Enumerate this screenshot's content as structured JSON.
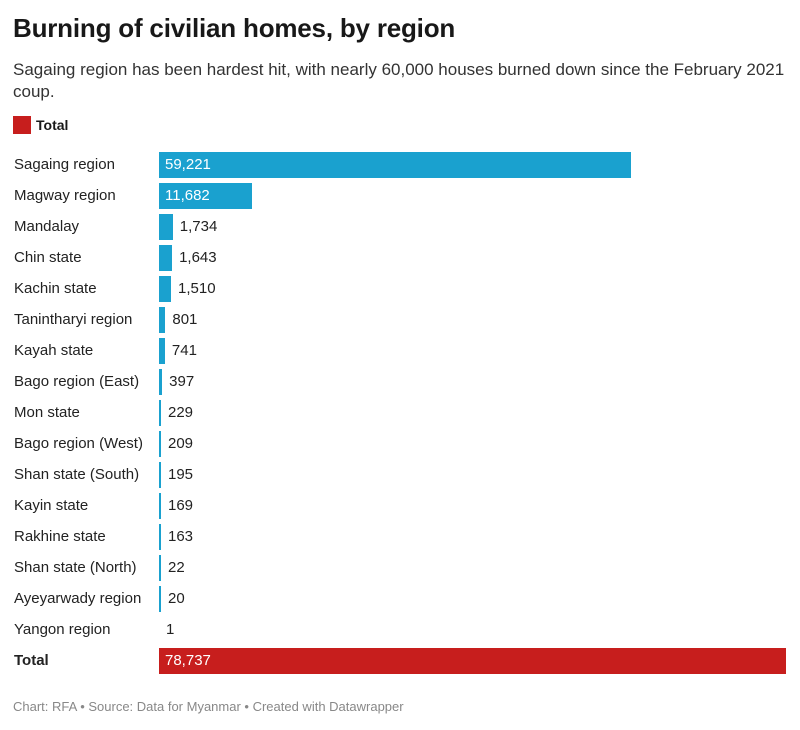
{
  "title": "Burning of civilian homes, by region",
  "subtitle": "Sagaing region has been hardest hit, with nearly 60,000 houses burned down since the February 2021 coup.",
  "footer": "Chart: RFA • Source: Data for Myanmar • Created with Datawrapper",
  "colors": {
    "bar": "#1aa1cf",
    "total": "#c71e1d"
  },
  "chart_data": {
    "type": "bar",
    "orientation": "horizontal",
    "title": "Burning of civilian homes, by region",
    "legend": {
      "entries": [
        "Total"
      ],
      "placement": "top-left"
    },
    "categories": [
      "Sagaing region",
      "Magway region",
      "Mandalay",
      "Chin state",
      "Kachin state",
      "Tanintharyi region",
      "Kayah state",
      "Bago region (East)",
      "Mon state",
      "Bago region (West)",
      "Shan state (South)",
      "Kayin state",
      "Rakhine state",
      "Shan state (North)",
      "Ayeyarwady region",
      "Yangon region",
      "Total"
    ],
    "values": [
      59221,
      11682,
      1734,
      1643,
      1510,
      801,
      741,
      397,
      229,
      209,
      195,
      169,
      163,
      22,
      20,
      1,
      78737
    ],
    "value_labels": [
      "59,221",
      "11,682",
      "1,734",
      "1,643",
      "1,510",
      "801",
      "741",
      "397",
      "229",
      "209",
      "195",
      "169",
      "163",
      "22",
      "20",
      "1",
      "78,737"
    ],
    "xlim": [
      0,
      78737
    ]
  }
}
